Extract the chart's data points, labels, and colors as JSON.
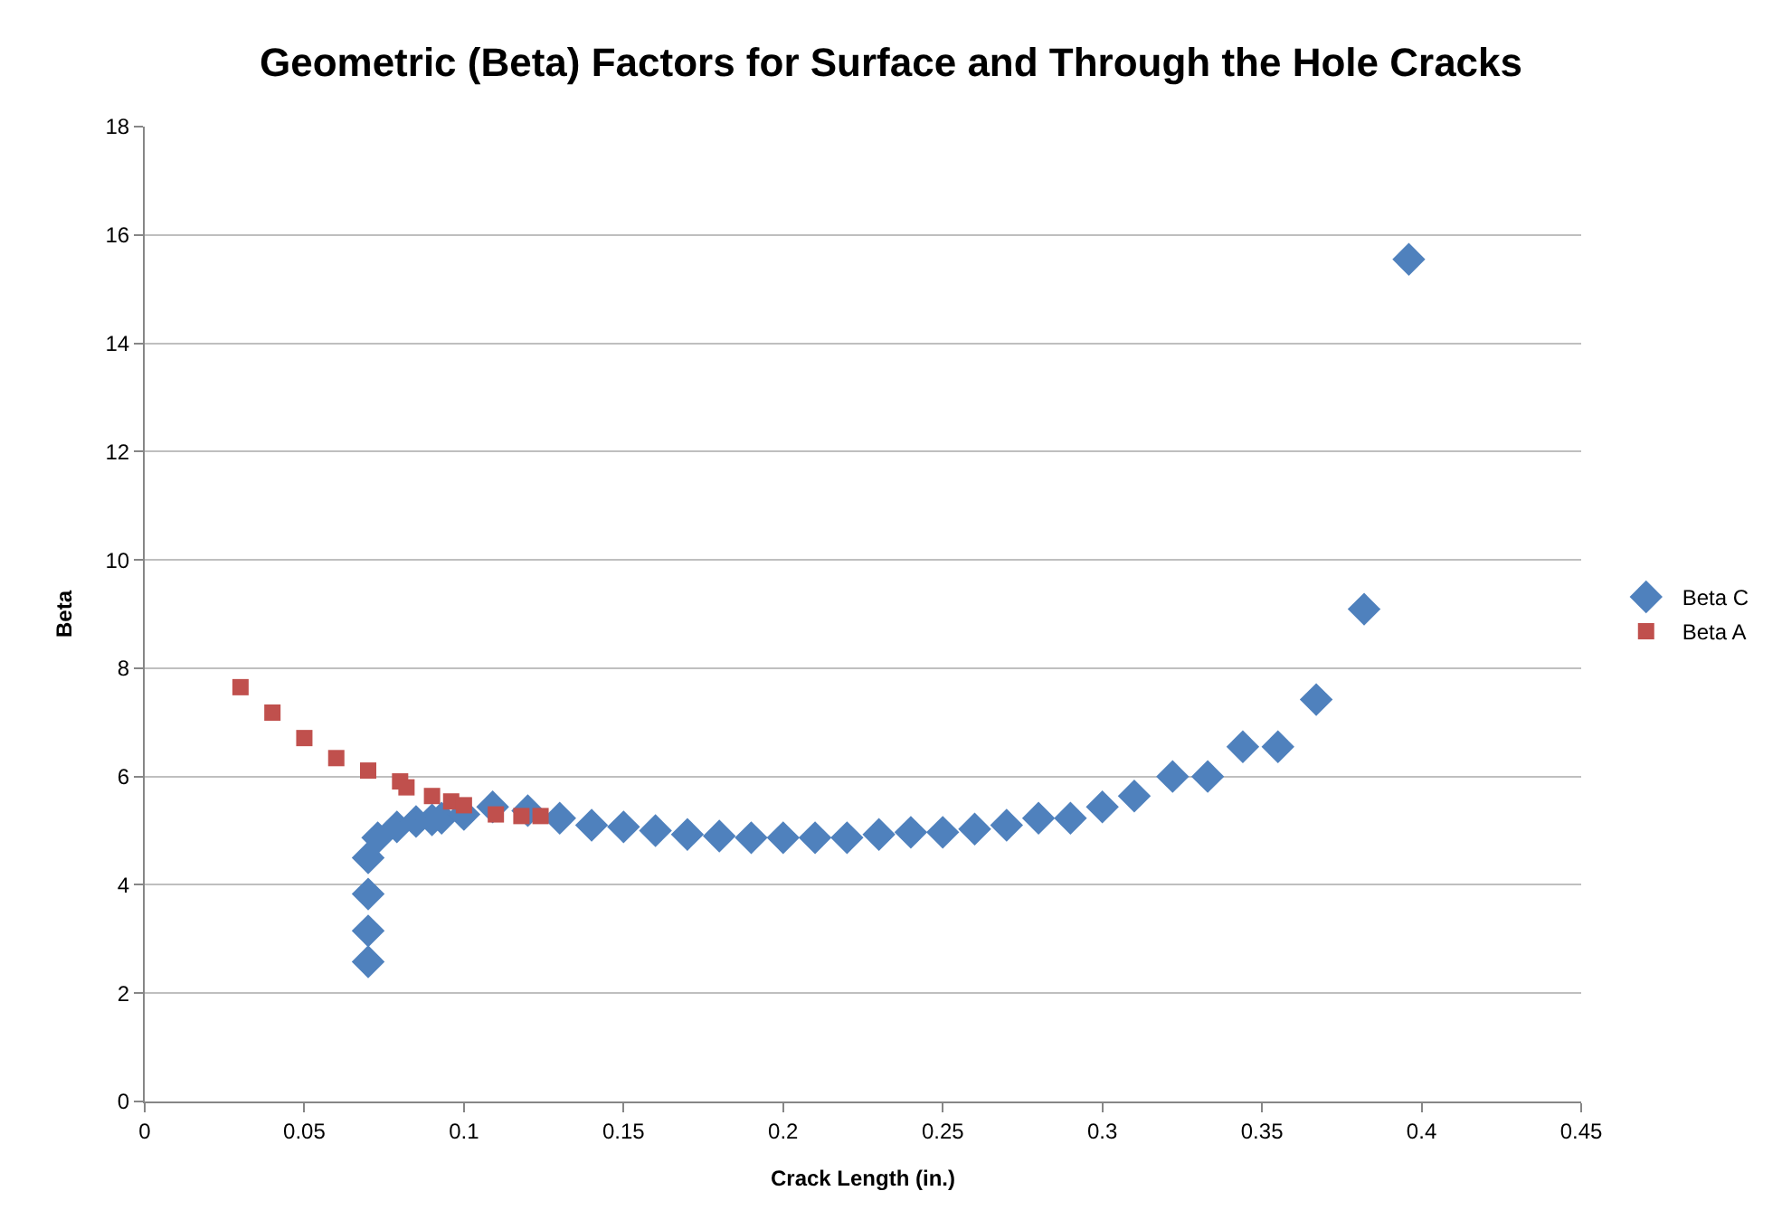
{
  "chart_data": {
    "type": "scatter",
    "title": "Geometric (Beta) Factors for Surface and Through the Hole Cracks",
    "xlabel": "Crack Length (in.)",
    "ylabel": "Beta",
    "xlim": [
      0,
      0.45
    ],
    "xticks": [
      0,
      0.05,
      0.1,
      0.15,
      0.2,
      0.25,
      0.3,
      0.35,
      0.4,
      0.45
    ],
    "ylim": [
      0,
      18
    ],
    "yticks": [
      0,
      2,
      4,
      6,
      8,
      10,
      12,
      14,
      16,
      18
    ],
    "grid": "y",
    "legend": "right",
    "series": [
      {
        "name": "Beta C",
        "color": "#4f81bd",
        "marker": "diamond",
        "x": [
          0.07,
          0.07,
          0.07,
          0.07,
          0.073,
          0.079,
          0.085,
          0.09,
          0.093,
          0.1,
          0.109,
          0.12,
          0.13,
          0.14,
          0.15,
          0.16,
          0.17,
          0.18,
          0.19,
          0.2,
          0.21,
          0.22,
          0.23,
          0.24,
          0.25,
          0.26,
          0.27,
          0.28,
          0.29,
          0.3,
          0.31,
          0.322,
          0.333,
          0.344,
          0.355,
          0.367,
          0.382,
          0.396
        ],
        "values": [
          2.58,
          3.15,
          3.83,
          4.5,
          4.87,
          5.07,
          5.17,
          5.2,
          5.23,
          5.3,
          5.44,
          5.37,
          5.23,
          5.1,
          5.07,
          5.0,
          4.93,
          4.9,
          4.87,
          4.87,
          4.87,
          4.87,
          4.93,
          4.97,
          4.97,
          5.03,
          5.1,
          5.23,
          5.23,
          5.44,
          5.64,
          6.0,
          6.0,
          6.55,
          6.55,
          7.42,
          9.09,
          15.55
        ]
      },
      {
        "name": "Beta A",
        "color": "#c0504d",
        "marker": "square",
        "x": [
          0.03,
          0.04,
          0.05,
          0.06,
          0.07,
          0.08,
          0.082,
          0.09,
          0.096,
          0.1,
          0.11,
          0.118,
          0.124
        ],
        "values": [
          7.65,
          7.18,
          6.71,
          6.34,
          6.11,
          5.91,
          5.8,
          5.64,
          5.54,
          5.47,
          5.3,
          5.27,
          5.27
        ]
      }
    ]
  }
}
